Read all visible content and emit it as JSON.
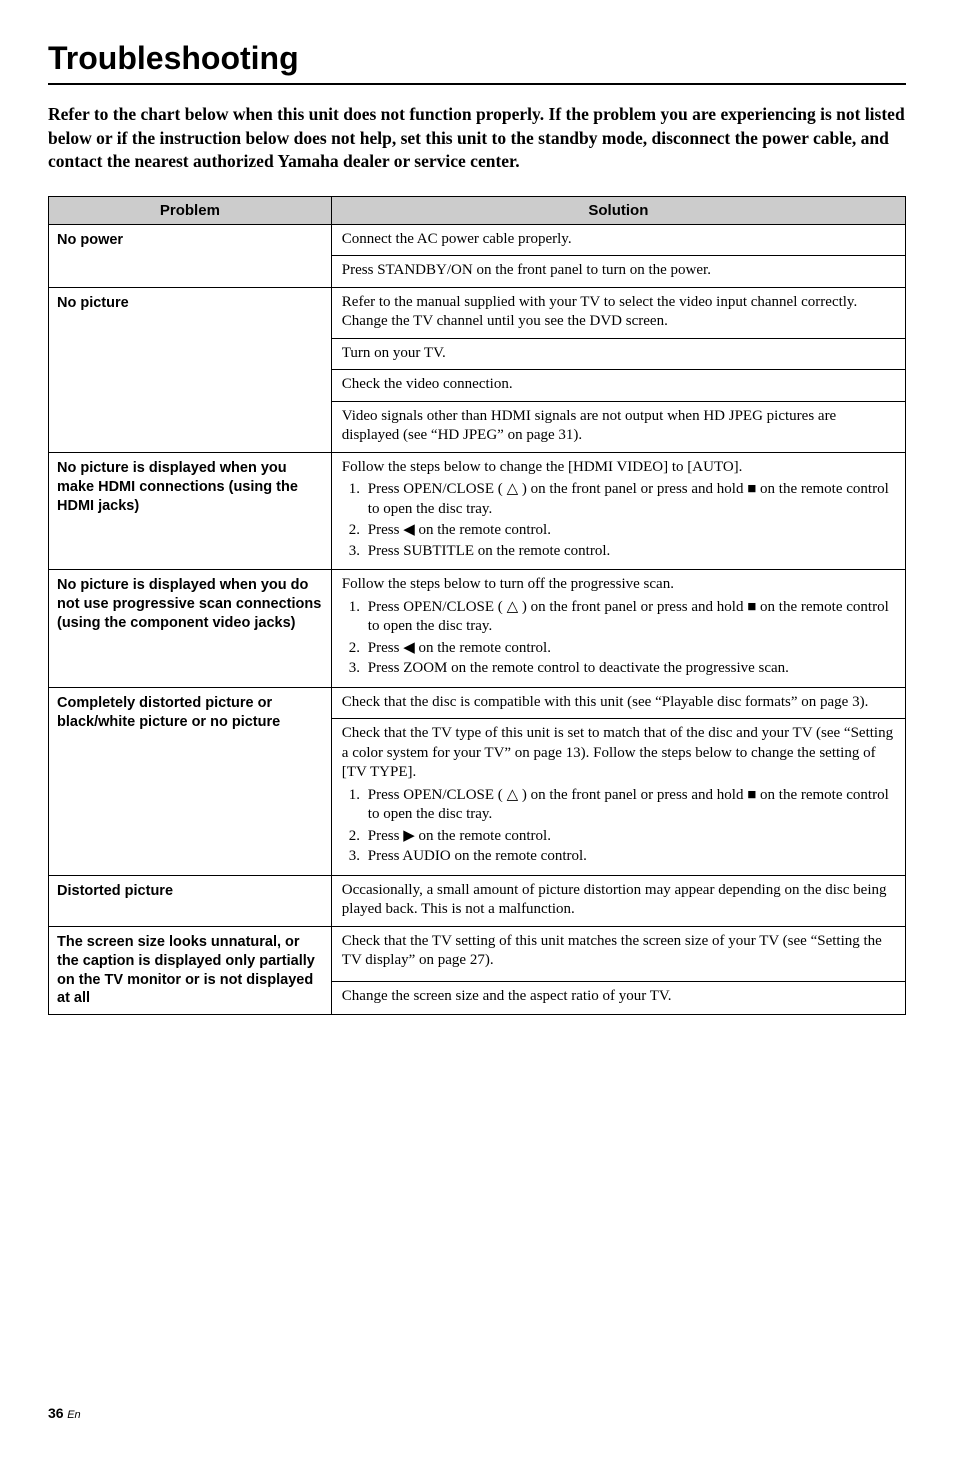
{
  "title": "Troubleshooting",
  "intro": "Refer to the chart below when this unit does not function properly. If the problem you are experiencing is not listed below or if the instruction below does not help, set this unit to the standby mode, disconnect the power cable, and contact the nearest authorized Yamaha dealer or service center.",
  "headers": {
    "problem": "Problem",
    "solution": "Solution"
  },
  "icons": {
    "eject": "△",
    "stop": "■",
    "left": "◀",
    "right": "▶"
  },
  "rows": {
    "r1": {
      "problem": "No power",
      "s1": "Connect the AC power cable properly.",
      "s2": "Press STANDBY/ON on the front panel to turn on the power."
    },
    "r2": {
      "problem": "No picture",
      "s1": "Refer to the manual supplied with your TV to select the video input channel correctly. Change the TV channel until you see the DVD screen.",
      "s2": "Turn on your TV.",
      "s3": "Check the video connection.",
      "s4": "Video signals other than HDMI signals are not output when HD JPEG pictures are displayed (see “HD JPEG” on page 31)."
    },
    "r3": {
      "problem": "No picture is displayed when you make HDMI connections (using the HDMI jacks)",
      "lead": "Follow the steps below to change the [HDMI VIDEO] to [AUTO].",
      "step1a": "Press OPEN/CLOSE ( ",
      "step1b": " ) on the front panel or press and hold ",
      "step1c": " on the remote control to open the disc tray.",
      "step2a": "Press ",
      "step2b": " on the remote control.",
      "step3": "Press SUBTITLE on the remote control."
    },
    "r4": {
      "problem": "No picture is displayed when you do not use progressive scan connections (using the component video jacks)",
      "lead": "Follow the steps below to turn off the progressive scan.",
      "step1a": "Press OPEN/CLOSE ( ",
      "step1b": " ) on the front panel or press and hold ",
      "step1c": " on the remote control to open the disc tray.",
      "step2a": "Press ",
      "step2b": " on the remote control.",
      "step3": "Press ZOOM on the remote control to deactivate the progressive scan."
    },
    "r5": {
      "problem": "Completely distorted picture or black/white picture or no picture",
      "s1": "Check that the disc is compatible with this unit (see “Playable disc formats” on page 3).",
      "lead": "Check that the TV type of this unit is set to match that of the disc and your TV (see “Setting a color system for your TV” on page 13). Follow the steps below to change the setting of [TV TYPE].",
      "step1a": "Press OPEN/CLOSE ( ",
      "step1b": " ) on the front panel or press and hold ",
      "step1c": " on the remote control to open the disc tray.",
      "step2a": "Press ",
      "step2b": " on the remote control.",
      "step3": "Press AUDIO on the remote control."
    },
    "r6": {
      "problem": "Distorted picture",
      "s1": "Occasionally, a small amount of picture distortion may appear depending on the disc being played back. This is not a malfunction."
    },
    "r7": {
      "problem": "The screen size looks unnatural, or the caption is displayed only partially on the TV monitor or is not displayed at all",
      "s1": "Check that the TV setting of this unit matches the screen size of your TV (see “Setting the TV display” on page 27).",
      "s2": "Change the screen size and the aspect ratio of your TV."
    }
  },
  "footer": {
    "pagenum": "36",
    "en": "En"
  }
}
